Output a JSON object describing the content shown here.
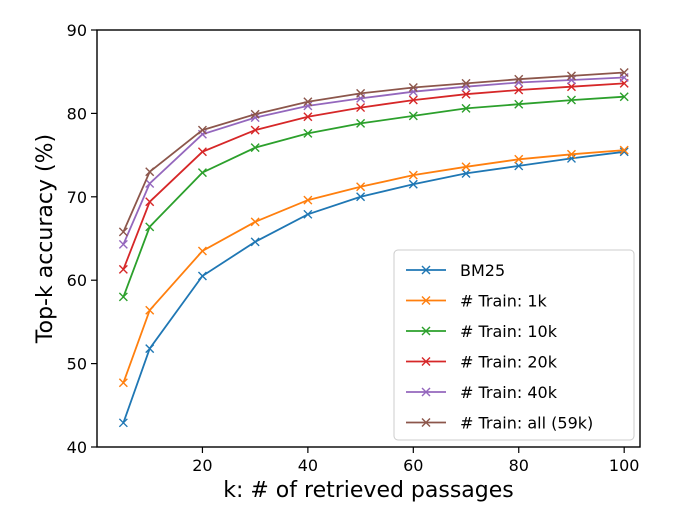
{
  "chart_data": {
    "type": "line",
    "title": "",
    "xlabel": "k: # of retrieved passages",
    "ylabel": "Top-k accuracy (%)",
    "xlim": [
      0,
      103
    ],
    "ylim": [
      40,
      90
    ],
    "xticks": [
      20,
      40,
      60,
      80,
      100
    ],
    "yticks": [
      40,
      50,
      60,
      70,
      80,
      90
    ],
    "grid": false,
    "legend_position": "lower-right",
    "x": [
      5,
      10,
      20,
      30,
      40,
      50,
      60,
      70,
      80,
      90,
      100
    ],
    "series": [
      {
        "name": "BM25",
        "color": "#1f77b4",
        "values": [
          42.9,
          51.8,
          60.5,
          64.6,
          67.9,
          70.0,
          71.5,
          72.8,
          73.7,
          74.6,
          75.4
        ]
      },
      {
        "name": "# Train: 1k",
        "color": "#ff7f0e",
        "values": [
          47.7,
          56.4,
          63.5,
          67.0,
          69.6,
          71.2,
          72.6,
          73.6,
          74.5,
          75.1,
          75.6
        ]
      },
      {
        "name": "# Train: 10k",
        "color": "#2ca02c",
        "values": [
          58.0,
          66.4,
          72.9,
          75.9,
          77.6,
          78.8,
          79.7,
          80.6,
          81.1,
          81.6,
          82.0
        ]
      },
      {
        "name": "# Train: 20k",
        "color": "#d62728",
        "values": [
          61.3,
          69.4,
          75.4,
          78.0,
          79.6,
          80.7,
          81.6,
          82.3,
          82.8,
          83.2,
          83.6
        ]
      },
      {
        "name": "# Train: 40k",
        "color": "#9467bd",
        "values": [
          64.3,
          71.6,
          77.5,
          79.5,
          80.9,
          81.8,
          82.6,
          83.2,
          83.7,
          84.0,
          84.3
        ]
      },
      {
        "name": "# Train: all (59k)",
        "color": "#8c564b",
        "values": [
          65.8,
          73.0,
          78.0,
          79.9,
          81.4,
          82.4,
          83.1,
          83.6,
          84.1,
          84.5,
          84.9
        ]
      }
    ]
  }
}
